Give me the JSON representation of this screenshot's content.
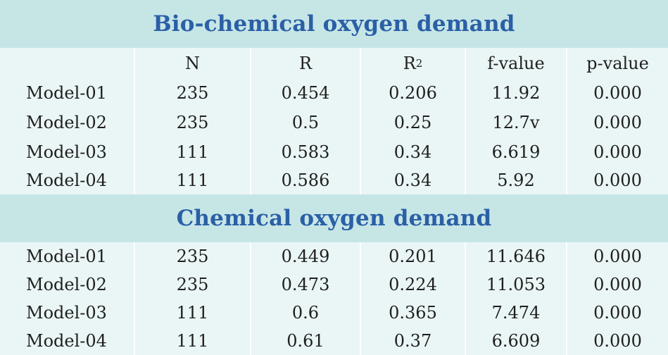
{
  "sections": [
    {
      "title": "Bio-chemical oxygen demand",
      "headers": [
        "",
        "N",
        "R",
        "R",
        "f-value",
        "p-value"
      ],
      "header_superscript": "2",
      "rows": [
        {
          "label": "Model-01",
          "n": "235",
          "r": "0.454",
          "r2": "0.206",
          "f": "11.92",
          "p": "0.000"
        },
        {
          "label": "Model-02",
          "n": "235",
          "r": "0.5",
          "r2": "0.25",
          "f": "12.7v",
          "p": "0.000"
        },
        {
          "label": "Model-03",
          "n": "111",
          "r": "0.583",
          "r2": "0.34",
          "f": "6.619",
          "p": "0.000"
        },
        {
          "label": "Model-04",
          "n": "111",
          "r": "0.586",
          "r2": "0.34",
          "f": "5.92",
          "p": "0.000"
        }
      ]
    },
    {
      "title": "Chemical oxygen demand",
      "rows": [
        {
          "label": "Model-01",
          "n": "235",
          "r": "0.449",
          "r2": "0.201",
          "f": "11.646",
          "p": "0.000"
        },
        {
          "label": "Model-02",
          "n": "235",
          "r": "0.473",
          "r2": "0.224",
          "f": "11.053",
          "p": "0.000"
        },
        {
          "label": "Model-03",
          "n": "111",
          "r": "0.6",
          "r2": "0.365",
          "f": "7.474",
          "p": "0.000"
        },
        {
          "label": "Model-04",
          "n": "111",
          "r": "0.61",
          "r2": "0.37",
          "f": "6.609",
          "p": "0.000"
        }
      ]
    }
  ],
  "colors": {
    "title_text": "#2b5fa6",
    "title_band": "#c6e6e6",
    "body_bg": "#e9f5f5",
    "column_divider": "#ffffff"
  }
}
